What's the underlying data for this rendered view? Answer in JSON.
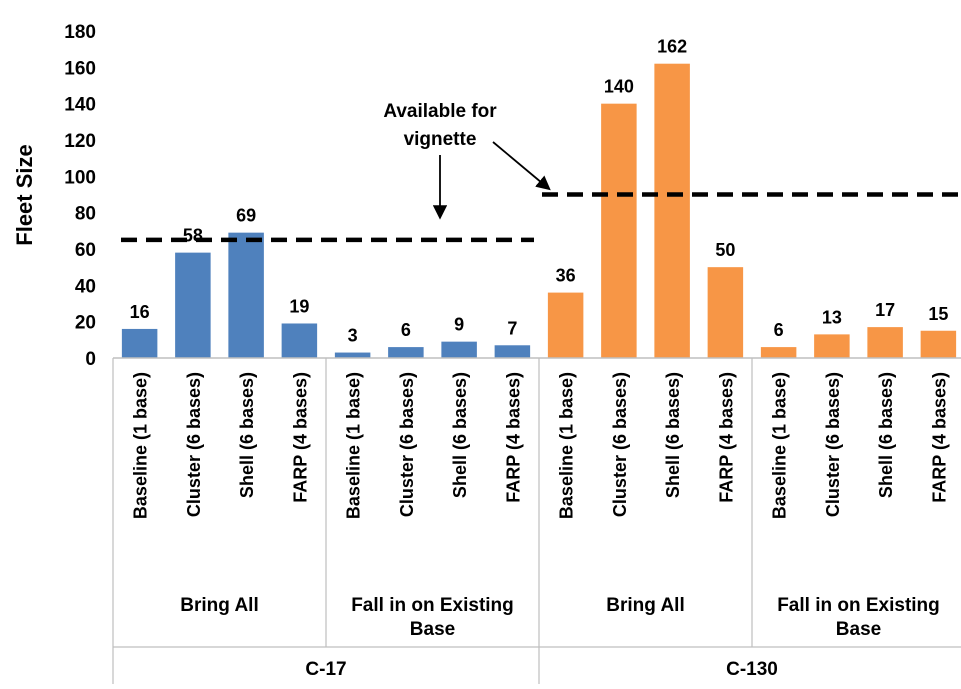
{
  "chart_data": {
    "type": "bar",
    "ylabel": "Fleet Size",
    "ylim": [
      0,
      180
    ],
    "yticks": [
      0,
      20,
      40,
      60,
      80,
      100,
      120,
      140,
      160,
      180
    ],
    "grid": false,
    "legend": "none",
    "categories": [
      "Baseline (1 base)",
      "Cluster (6 bases)",
      "Shell (6 bases)",
      "FARP (4 bases)",
      "Baseline (1 base)",
      "Cluster (6 bases)",
      "Shell (6 bases)",
      "FARP (4 bases)",
      "Baseline (1 base)",
      "Cluster (6 bases)",
      "Shell (6 bases)",
      "FARP (4 bases)",
      "Baseline (1 base)",
      "Cluster (6 bases)",
      "Shell (6 bases)",
      "FARP (4 bases)"
    ],
    "values": [
      16,
      58,
      69,
      19,
      3,
      6,
      9,
      7,
      36,
      140,
      162,
      50,
      6,
      13,
      17,
      15
    ],
    "bar_groups": [
      "C-17",
      "C-17",
      "C-17",
      "C-17",
      "C-17",
      "C-17",
      "C-17",
      "C-17",
      "C-130",
      "C-130",
      "C-130",
      "C-130",
      "C-130",
      "C-130",
      "C-130",
      "C-130"
    ],
    "subgroups": [
      {
        "label": "Bring All",
        "span": 4
      },
      {
        "label": "Fall in on Existing Base",
        "span": 4
      },
      {
        "label": "Bring All",
        "span": 4
      },
      {
        "label": "Fall in on Existing Base",
        "span": 4
      }
    ],
    "groups": [
      {
        "label": "C-17",
        "span": 8
      },
      {
        "label": "C-130",
        "span": 8
      }
    ],
    "reference_lines": [
      {
        "group": "C-17",
        "value": 65
      },
      {
        "group": "C-130",
        "value": 90
      }
    ],
    "annotation": {
      "text": [
        "Available for",
        "vignette"
      ]
    },
    "colors": {
      "C-17": "#4f81bd",
      "C-130": "#f79646",
      "reference": "#000000",
      "axis": "#bfbfbf"
    }
  }
}
